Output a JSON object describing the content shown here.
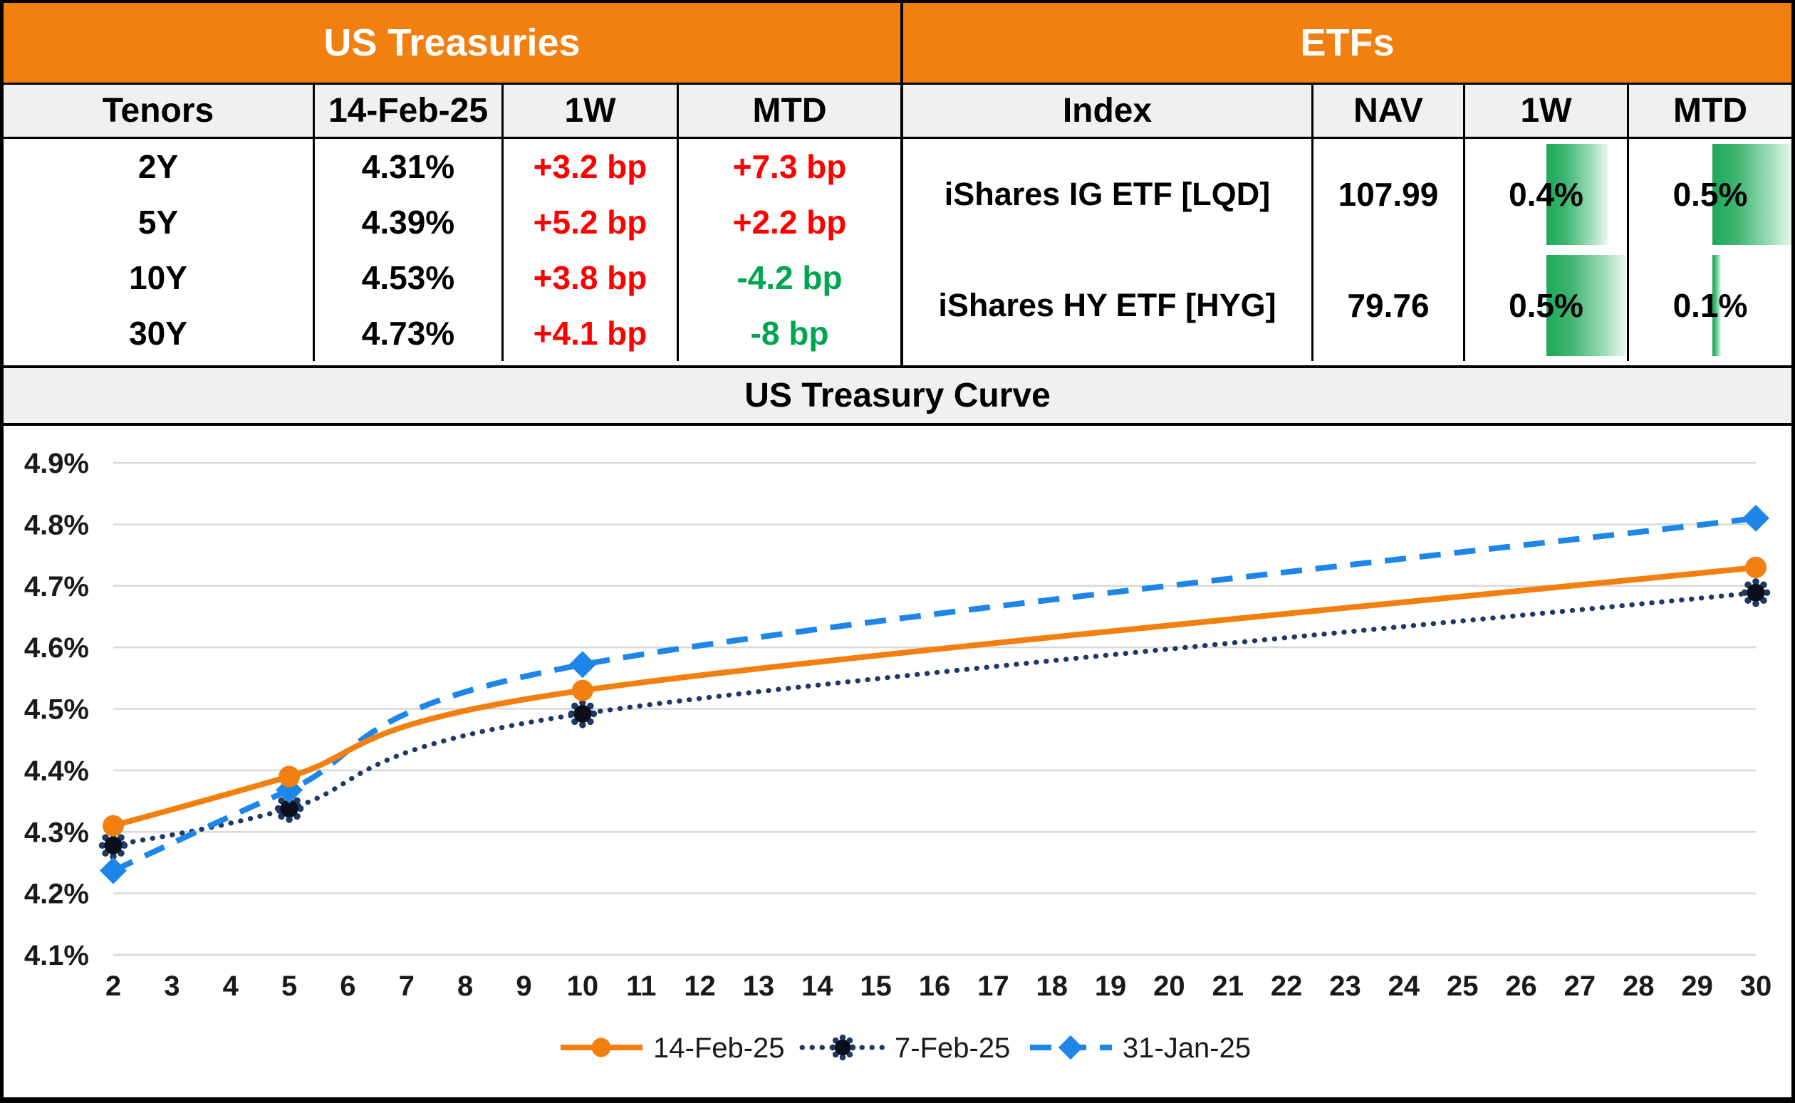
{
  "treasuries": {
    "title": "US Treasuries",
    "headers": [
      "Tenors",
      "14-Feb-25",
      "1W",
      "MTD"
    ],
    "rows": [
      {
        "tenor": "2Y",
        "rate": "4.31%",
        "w1": "+3.2 bp",
        "mtd": "+7.3 bp"
      },
      {
        "tenor": "5Y",
        "rate": "4.39%",
        "w1": "+5.2 bp",
        "mtd": "+2.2 bp"
      },
      {
        "tenor": "10Y",
        "rate": "4.53%",
        "w1": "+3.8 bp",
        "mtd": "-4.2 bp"
      },
      {
        "tenor": "30Y",
        "rate": "4.73%",
        "w1": "+4.1 bp",
        "mtd": "-8 bp"
      }
    ]
  },
  "etfs": {
    "title": "ETFs",
    "headers": [
      "Index",
      "NAV",
      "1W",
      "MTD"
    ],
    "rows": [
      {
        "index": "iShares IG ETF [LQD]",
        "nav": "107.99",
        "w1": "0.4%",
        "w1_value": 0.4,
        "mtd": "0.5%",
        "mtd_value": 0.5
      },
      {
        "index": "iShares HY ETF [HYG]",
        "nav": "79.76",
        "w1": "0.5%",
        "w1_value": 0.5,
        "mtd": "0.1%",
        "mtd_value": 0.1
      }
    ]
  },
  "chart_data": {
    "type": "line",
    "title": "US Treasury Curve",
    "x": [
      2,
      5,
      10,
      30
    ],
    "x_ticks": [
      2,
      3,
      4,
      5,
      6,
      7,
      8,
      9,
      10,
      11,
      12,
      13,
      14,
      15,
      16,
      17,
      18,
      19,
      20,
      21,
      22,
      23,
      24,
      25,
      26,
      27,
      28,
      29,
      30
    ],
    "ylim": [
      4.1,
      4.9
    ],
    "y_ticks": [
      {
        "value": 4.1,
        "label": "4.1%"
      },
      {
        "value": 4.2,
        "label": "4.2%"
      },
      {
        "value": 4.3,
        "label": "4.3%"
      },
      {
        "value": 4.4,
        "label": "4.4%"
      },
      {
        "value": 4.5,
        "label": "4.5%"
      },
      {
        "value": 4.6,
        "label": "4.6%"
      },
      {
        "value": 4.7,
        "label": "4.7%"
      },
      {
        "value": 4.8,
        "label": "4.8%"
      },
      {
        "value": 4.9,
        "label": "4.9%"
      }
    ],
    "grid": true,
    "legend_position": "bottom-center",
    "series": [
      {
        "name": "14-Feb-25",
        "values": [
          4.31,
          4.39,
          4.53,
          4.73
        ],
        "color": "#F28011",
        "style": "solid",
        "marker": "circle"
      },
      {
        "name": "7-Feb-25",
        "values": [
          4.278,
          4.338,
          4.492,
          4.689
        ],
        "color": "#1F3864",
        "style": "dotted",
        "marker": "burst"
      },
      {
        "name": "31-Jan-25",
        "values": [
          4.237,
          4.368,
          4.572,
          4.81
        ],
        "color": "#1E86E8",
        "style": "dashed",
        "marker": "diamond"
      }
    ]
  },
  "colors": {
    "accent_orange": "#F28011",
    "header_gray": "#F0F0F0",
    "positive_red": "#FF0000",
    "negative_green": "#00A550",
    "databar_green": "#1CA95B",
    "grid_gray": "#D9D9D9",
    "series_orange": "#F28011",
    "series_navy": "#1F3864",
    "series_blue": "#1E86E8"
  }
}
